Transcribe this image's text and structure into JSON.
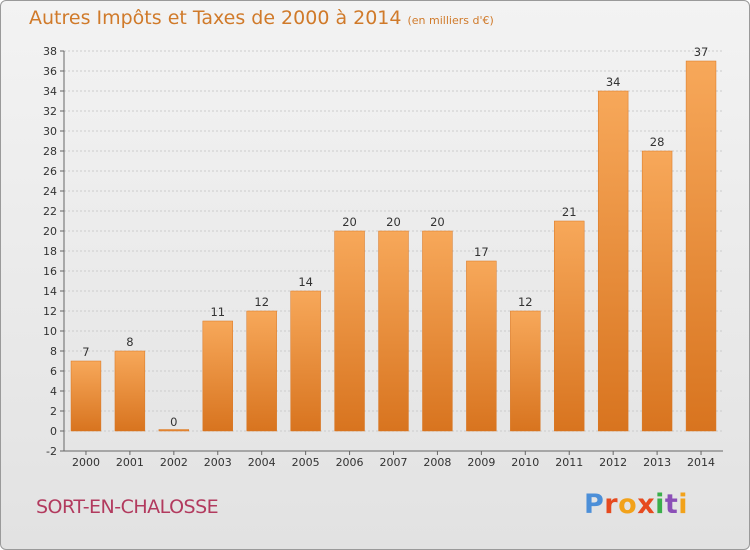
{
  "title": {
    "main": "Autres Impôts et Taxes de 2000 à 2014",
    "unit": "(en milliers d'€)"
  },
  "commune": "SORT-EN-CHALOSSE",
  "logo": {
    "text": "Proxiti"
  },
  "colors": {
    "bar_light": "#f7a85a",
    "bar_dark": "#d8741f",
    "title": "#d07a2a",
    "commune": "#b23a5e",
    "grid": "#cccccc"
  },
  "chart_data": {
    "type": "bar",
    "categories": [
      "2000",
      "2001",
      "2002",
      "2003",
      "2004",
      "2005",
      "2006",
      "2007",
      "2008",
      "2009",
      "2010",
      "2011",
      "2012",
      "2013",
      "2014"
    ],
    "values": [
      7,
      8,
      0,
      11,
      12,
      14,
      20,
      20,
      20,
      17,
      12,
      21,
      34,
      28,
      37
    ],
    "data_labels": [
      "7",
      "8",
      "0",
      "11",
      "12",
      "14",
      "20",
      "20",
      "20",
      "17",
      "12",
      "21",
      "34",
      "28",
      "37"
    ],
    "ylim": [
      -2,
      38
    ],
    "yticks": [
      -2,
      0,
      2,
      4,
      6,
      8,
      10,
      12,
      14,
      16,
      18,
      20,
      22,
      24,
      26,
      28,
      30,
      32,
      34,
      36,
      38
    ],
    "grid": true
  }
}
